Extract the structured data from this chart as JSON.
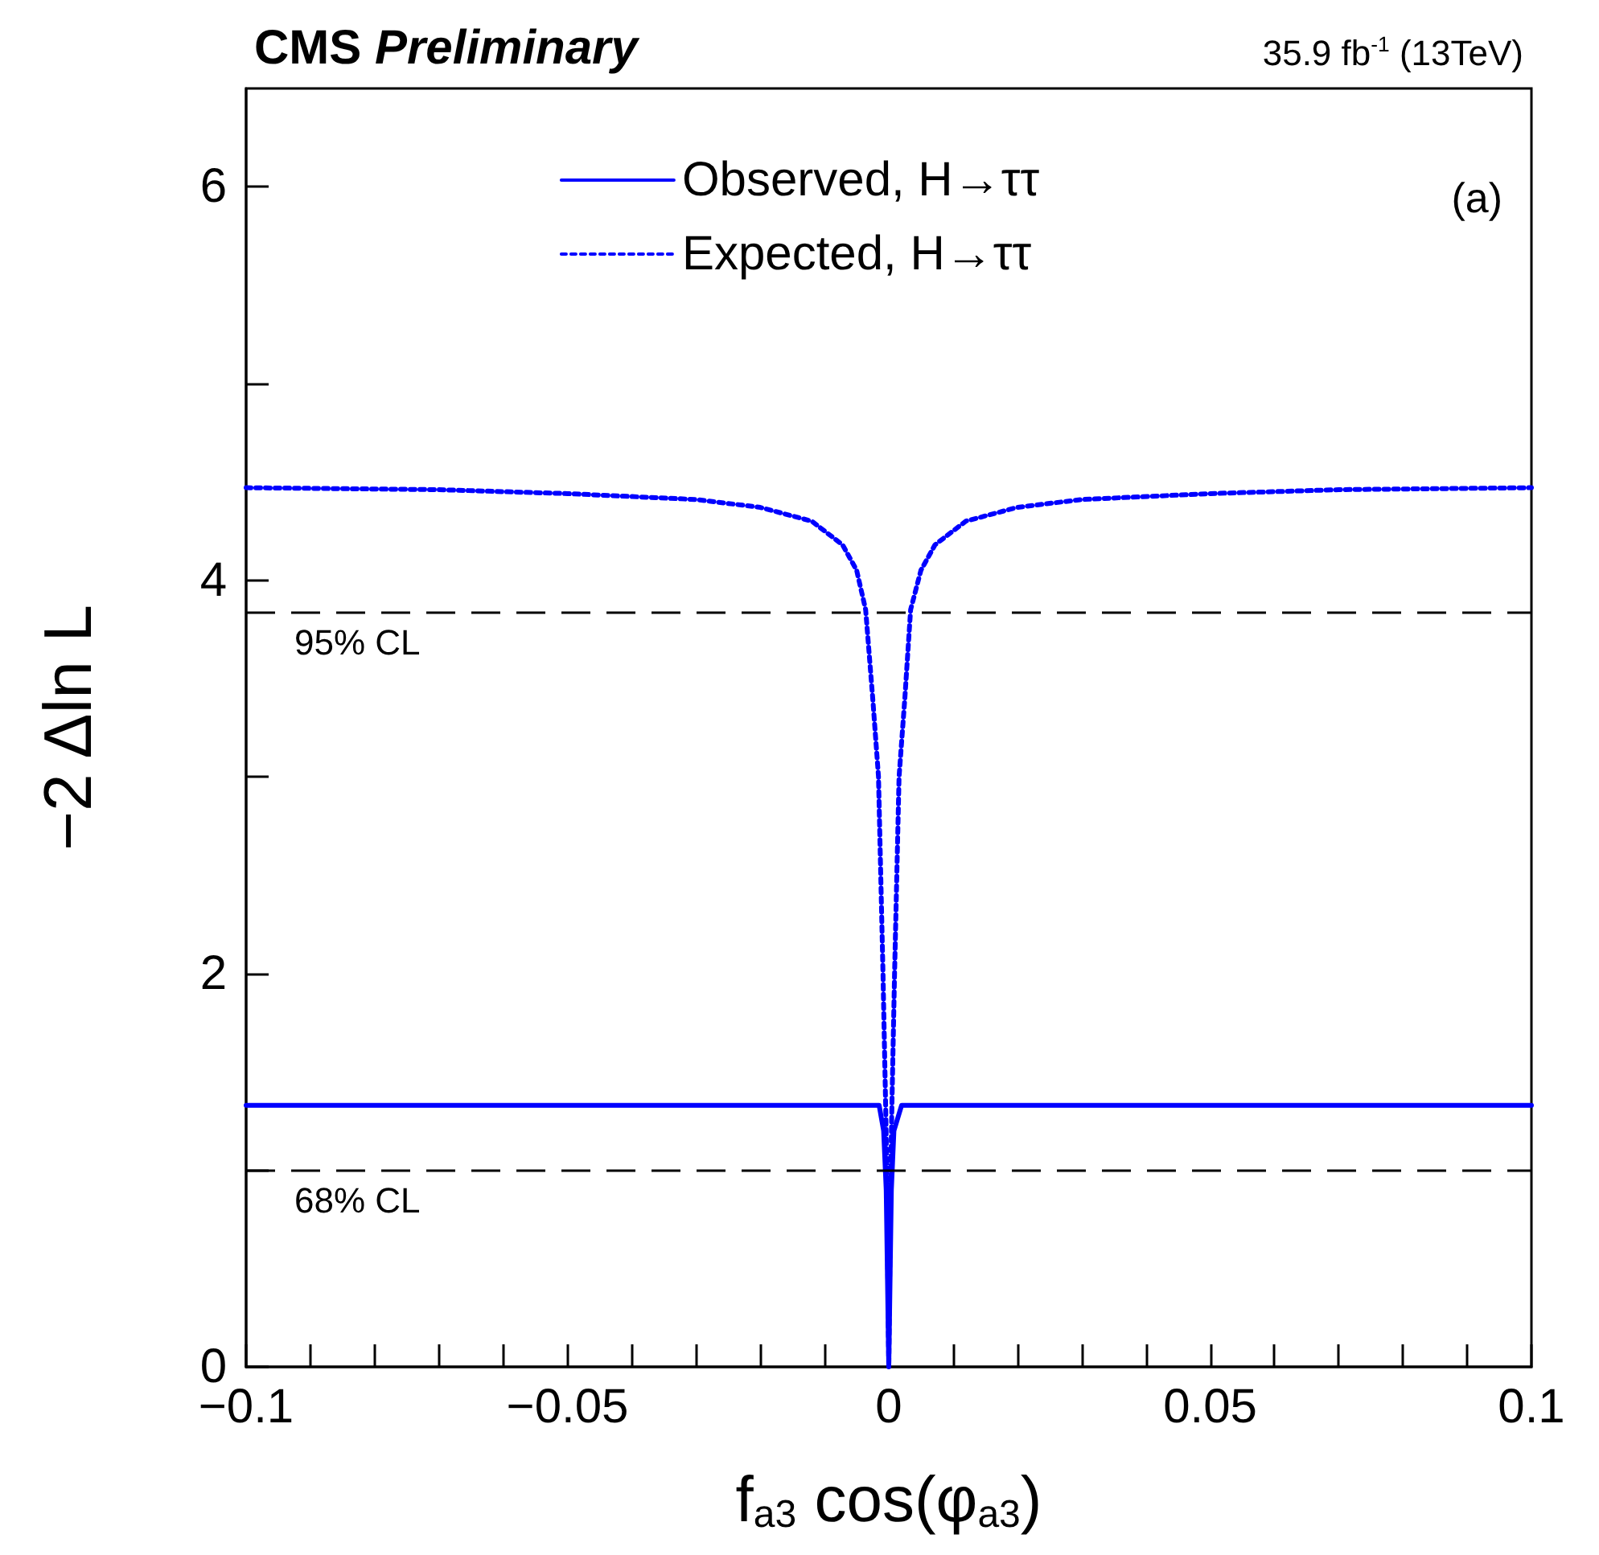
{
  "chart_data": {
    "type": "line",
    "title": "CMS Preliminary",
    "subtitle": "35.9 fb$^{-1}$ (13TeV)",
    "xlabel": "f$_{a3}$ cos(φ$_{a3}$)",
    "ylabel": "−2 Δln L",
    "annotations": [
      "(a)"
    ],
    "series": [
      {
        "name": "Observed, H→ττ",
        "color": "#0000ff",
        "line_style": "solid",
        "x": [
          -0.1,
          -0.05,
          -0.0015,
          -0.0008,
          -0.0004,
          0,
          0.0004,
          0.0008,
          0.002,
          0.05,
          0.1
        ],
        "values": [
          1.33,
          1.33,
          1.33,
          1.2,
          0.9,
          0,
          0.9,
          1.2,
          1.33,
          1.33,
          1.33
        ]
      },
      {
        "name": "Expected, H→ττ",
        "color": "#0000ff",
        "line_style": "dotted",
        "x": [
          -0.1,
          -0.07,
          -0.05,
          -0.03,
          -0.02,
          -0.012,
          -0.0072,
          -0.005,
          -0.0036,
          -0.0025,
          -0.0016,
          -0.0009,
          -0.0005,
          -0.0003,
          0,
          0.0003,
          0.0005,
          0.0009,
          0.0016,
          0.0025,
          0.0034,
          0.005,
          0.0072,
          0.012,
          0.02,
          0.03,
          0.05,
          0.07,
          0.1
        ],
        "values": [
          4.47,
          4.46,
          4.44,
          4.41,
          4.37,
          4.3,
          4.18,
          4.05,
          3.85,
          3.4,
          3.0,
          2.0,
          1.35,
          1.0,
          0,
          1.0,
          1.35,
          2.0,
          3.0,
          3.4,
          3.85,
          4.05,
          4.18,
          4.3,
          4.37,
          4.41,
          4.44,
          4.46,
          4.47
        ]
      }
    ],
    "xlim": [
      -0.1,
      0.1
    ],
    "xticks": [
      {
        "value": -0.1,
        "label": "−0.1"
      },
      {
        "value": -0.09,
        "label": null
      },
      {
        "value": -0.08,
        "label": null
      },
      {
        "value": -0.07,
        "label": null
      },
      {
        "value": -0.06,
        "label": null
      },
      {
        "value": -0.05,
        "label": "−0.05"
      },
      {
        "value": -0.04,
        "label": null
      },
      {
        "value": -0.03,
        "label": null
      },
      {
        "value": -0.02,
        "label": null
      },
      {
        "value": -0.01,
        "label": null
      },
      0,
      {
        "value": 0.01,
        "label": null
      },
      {
        "value": 0.02,
        "label": null
      },
      {
        "value": 0.03,
        "label": null
      },
      {
        "value": 0.04,
        "label": null
      },
      0.05,
      {
        "value": 0.06,
        "label": null
      },
      {
        "value": 0.07,
        "label": null
      },
      {
        "value": 0.08,
        "label": null
      },
      {
        "value": 0.09,
        "label": null
      },
      0.1
    ],
    "ylim": [
      0,
      6.5
    ],
    "yticks": [
      0,
      {
        "value": 1,
        "label": null
      },
      2,
      {
        "value": 3,
        "label": null
      },
      4,
      {
        "value": 5,
        "label": null
      },
      6
    ],
    "ref_lines": [
      {
        "axis": "y",
        "value": 1,
        "label": "68% CL",
        "color": "#000000",
        "line_style": "dashed"
      },
      {
        "axis": "y",
        "value": 3.84,
        "label": "95% CL",
        "color": "#000000",
        "line_style": "dashed"
      }
    ],
    "grid": false,
    "legend": "top",
    "marker": "none"
  }
}
